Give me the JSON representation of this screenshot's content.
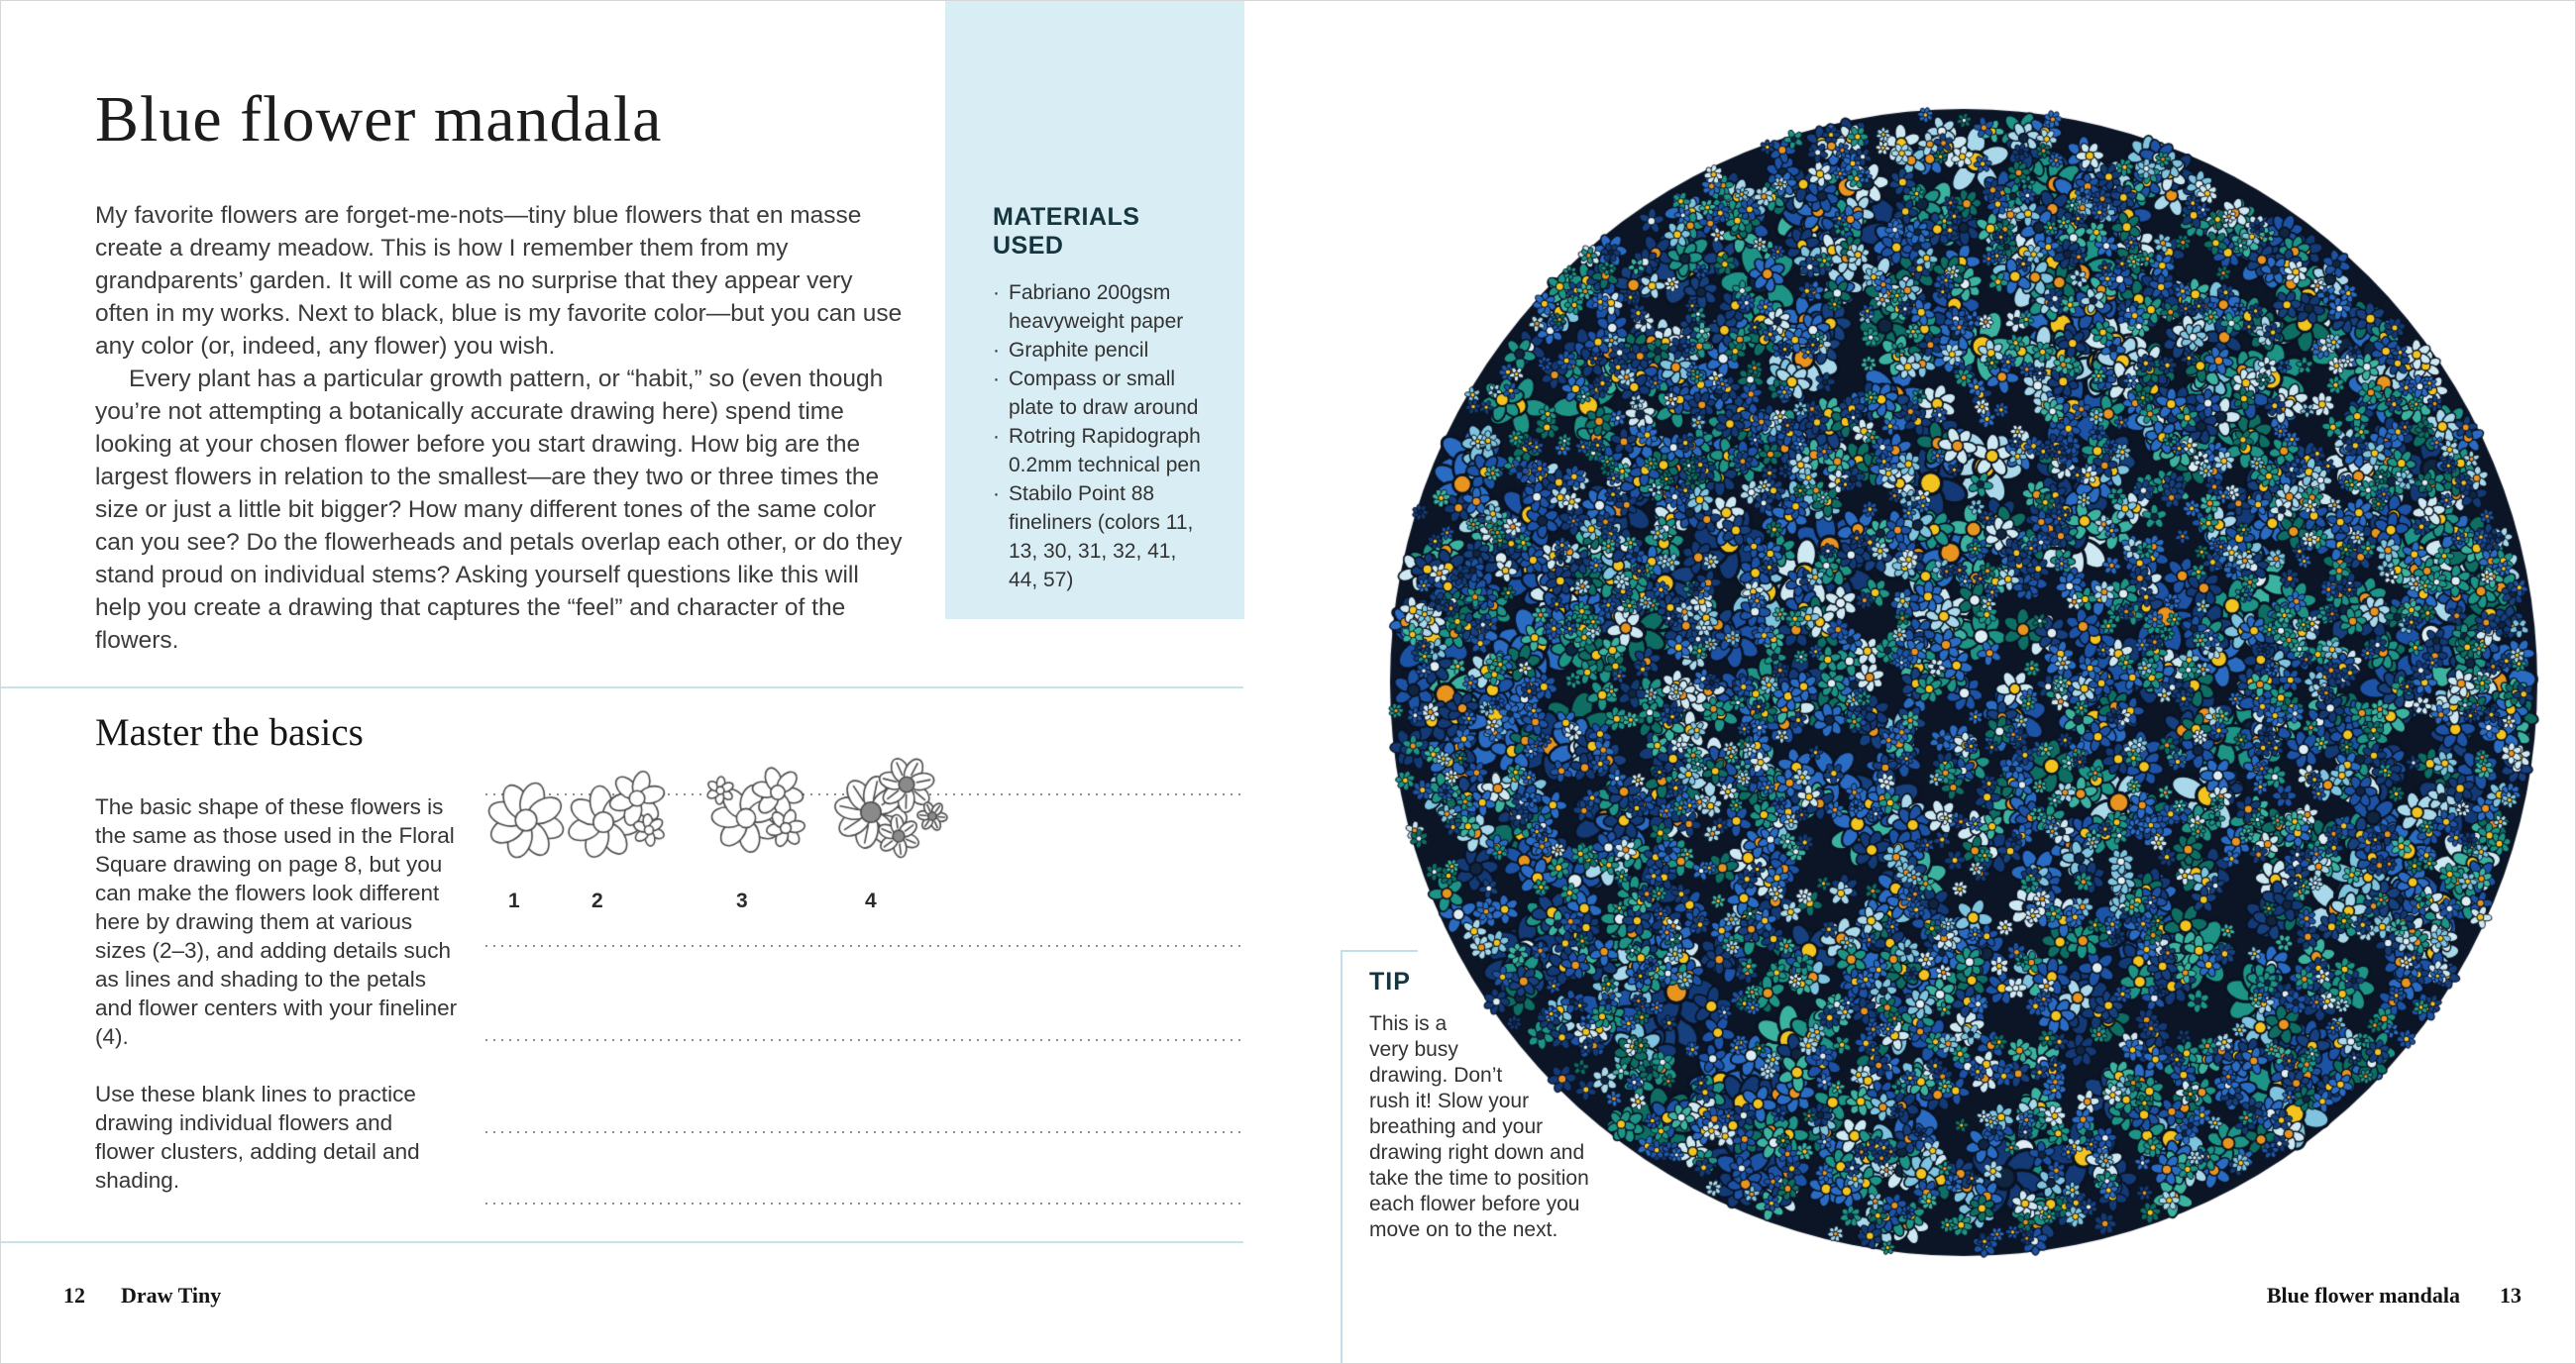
{
  "page_left": {
    "title": "Blue flower mandala",
    "intro_p1": "My favorite flowers are forget-me-nots—tiny blue flowers that en masse create a dreamy meadow. This is how I remember them from my grandparents’ garden. It will come as no surprise that they appear very often in my works. Next to black, blue is my favorite color—but you can use any color (or, indeed, any flower) you wish.",
    "intro_p2": "Every plant has a particular growth pattern, or “habit,” so (even though you’re not attempting a botanically accurate drawing here) spend time looking at your chosen flower before you start drawing. How big are the largest flowers in relation to the smallest—are they two or three times the size or just a little bit bigger? How many different tones of the same color can you see? Do the flowerheads and petals overlap each other, or do they stand proud on individual stems? Asking yourself questions like this will help you create a drawing that captures the “feel” and character of the flowers.",
    "materials": {
      "heading": "MATERIALS USED",
      "items": [
        "Fabriano 200gsm heavyweight paper",
        "Graphite pencil",
        "Compass or small plate to draw around",
        "Rotring Rapidograph 0.2mm technical pen",
        "Stabilo Point 88 fineliners (colors 11, 13, 30, 31, 32, 41, 44, 57)"
      ]
    },
    "basics": {
      "heading": "Master the basics",
      "p1": "The basic shape of these flowers is the same as those used in the Floral Square drawing on page 8, but you can make the flowers look different here by drawing them at various sizes (2–3), and adding details such as lines and shading to the petals and flower centers with your fineliner (4).",
      "p2": "Use these blank lines to practice drawing individual flowers and flower clusters, adding detail and shading.",
      "step_numbers": [
        "1",
        "2",
        "3",
        "4"
      ]
    },
    "footer": {
      "page_number": "12",
      "book_title": "Draw Tiny"
    }
  },
  "page_right": {
    "tip": {
      "heading": "TIP",
      "lines": [
        "This is a",
        "very busy",
        "drawing. Don’t",
        "rush it! Slow your",
        "breathing and your",
        "drawing right down and",
        "take the time to position",
        "each flower before you",
        "move on to the next."
      ]
    },
    "footer": {
      "chapter_title": "Blue flower mandala",
      "page_number": "13"
    },
    "mandala": {
      "background": "#0b1526",
      "outline": "#0a1322",
      "petal_colors": [
        "#133a76",
        "#133a76",
        "#16407e",
        "#1d53a6",
        "#1d53a6",
        "#2a6cc4",
        "#2a6cc4",
        "#0e6e63",
        "#1d9486",
        "#1d9486",
        "#3cb3a0",
        "#7fc4df",
        "#a8d8ea",
        "#cfe9f2"
      ],
      "center_colors": [
        "#f3c41e",
        "#f3c41e",
        "#f3c41e",
        "#f3c41e",
        "#e8941f",
        "#e8941f",
        "#dfeef5",
        "#10253f"
      ]
    }
  },
  "colors": {
    "panel_bg": "#d9edf4",
    "rule_blue": "#c6e2eb",
    "heading_dark": "#16353f",
    "body_text": "#3b3b3b"
  }
}
